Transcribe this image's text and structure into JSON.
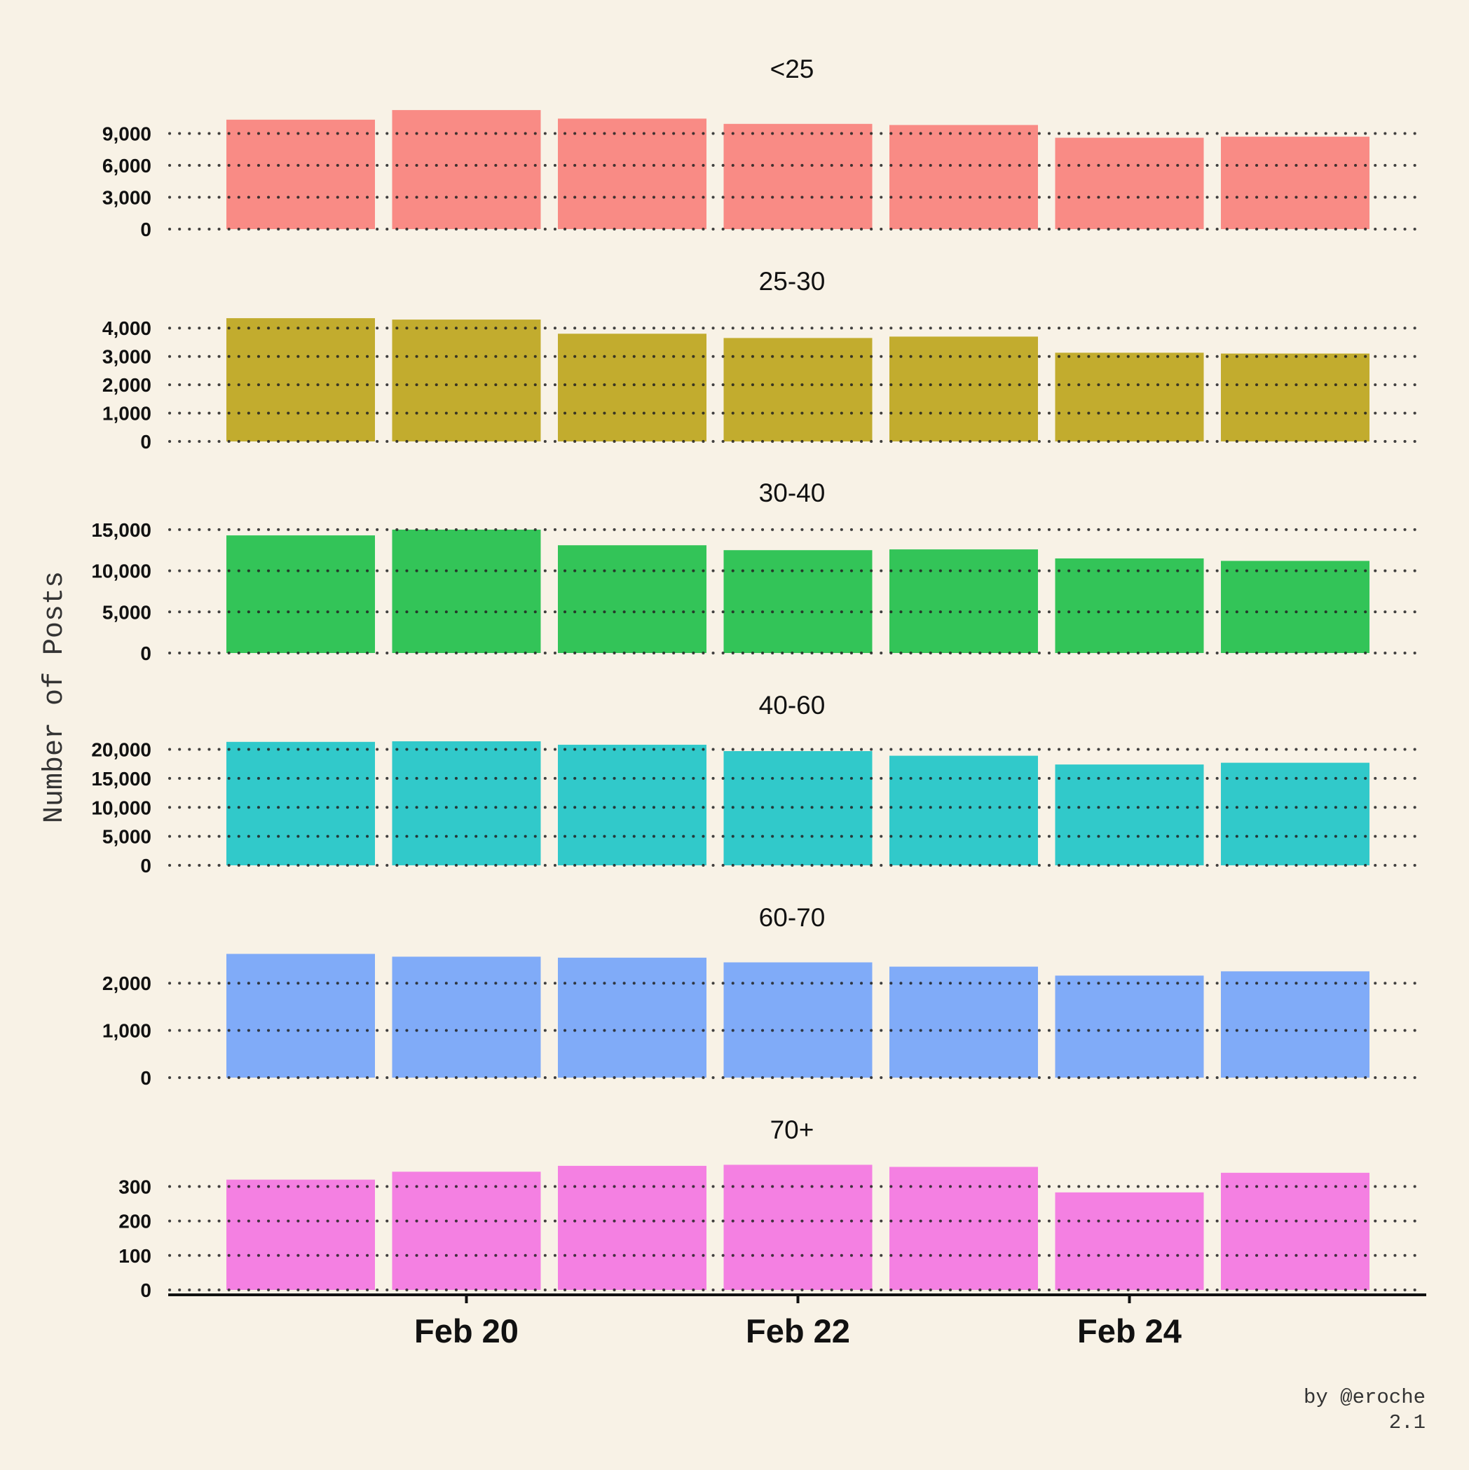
{
  "chart_data": {
    "type": "bar",
    "ylabel": "Number of Posts",
    "xlabel": "",
    "categories": [
      "Feb 19",
      "Feb 20",
      "Feb 21",
      "Feb 22",
      "Feb 23",
      "Feb 24",
      "Feb 25"
    ],
    "x_tick_labels": [
      "Feb 20",
      "Feb 22",
      "Feb 24"
    ],
    "x_tick_positions": [
      "Feb 20",
      "Feb 22",
      "Feb 24"
    ],
    "grid": "horizontal dotted",
    "panels": [
      {
        "title": "<25",
        "color": "#f98b85",
        "ylim": [
          0,
          12000
        ],
        "yticks": [
          0,
          3000,
          6000,
          9000
        ],
        "ytick_labels": [
          "0",
          "3,000",
          "6,000",
          "9,000"
        ],
        "values": [
          10300,
          11200,
          10400,
          9900,
          9800,
          8600,
          8700
        ]
      },
      {
        "title": "25-30",
        "color": "#c2ac2e",
        "ylim": [
          0,
          4500
        ],
        "yticks": [
          0,
          1000,
          2000,
          3000,
          4000
        ],
        "ytick_labels": [
          "0",
          "1,000",
          "2,000",
          "3,000",
          "4,000"
        ],
        "values": [
          4350,
          4300,
          3800,
          3650,
          3700,
          3130,
          3100
        ]
      },
      {
        "title": "30-40",
        "color": "#33c458",
        "ylim": [
          0,
          15500
        ],
        "yticks": [
          0,
          5000,
          10000,
          15000
        ],
        "ytick_labels": [
          "0",
          "5,000",
          "10,000",
          "15,000"
        ],
        "values": [
          14300,
          15000,
          13100,
          12500,
          12600,
          11500,
          11200
        ]
      },
      {
        "title": "40-60",
        "color": "#31c9ca",
        "ylim": [
          0,
          22000
        ],
        "yticks": [
          0,
          5000,
          10000,
          15000,
          20000
        ],
        "ytick_labels": [
          "0",
          "5,000",
          "10,000",
          "15,000",
          "20,000"
        ],
        "values": [
          21300,
          21400,
          20800,
          19700,
          18900,
          17400,
          17700
        ]
      },
      {
        "title": "60-70",
        "color": "#80abf8",
        "ylim": [
          0,
          2700
        ],
        "yticks": [
          0,
          1000,
          2000
        ],
        "ytick_labels": [
          "0",
          "1,000",
          "2,000"
        ],
        "values": [
          2620,
          2560,
          2540,
          2440,
          2350,
          2160,
          2250
        ]
      },
      {
        "title": "70+",
        "color": "#f480e2",
        "ylim": [
          0,
          370
        ],
        "yticks": [
          0,
          100,
          200,
          300
        ],
        "ytick_labels": [
          "0",
          "100",
          "200",
          "300"
        ],
        "values": [
          320,
          343,
          360,
          363,
          357,
          283,
          340
        ]
      }
    ]
  },
  "credit": {
    "line1": "by @eroche",
    "line2": "2.1"
  }
}
